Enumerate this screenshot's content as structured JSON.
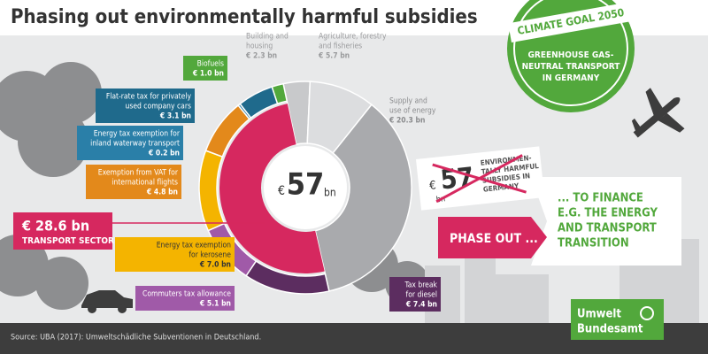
{
  "chart_data": {
    "type": "donut",
    "title": "Phasing out environmentally harmful subsidies",
    "currency": "€",
    "total": 57,
    "unit": "bn",
    "categories": [
      [
        "Building and",
        "housing"
      ],
      [
        "Agriculture, forestry",
        "and fisheries"
      ],
      [
        "Supply and",
        "use of energy"
      ],
      [
        "Tax break",
        "for diesel"
      ],
      [
        "Commuters tax allowance"
      ],
      [
        "Energy tax exemption",
        "for kerosene"
      ],
      [
        "Exemption from VAT for",
        "international flights"
      ],
      [
        "Energy tax exemption for",
        "inland waterway transport"
      ],
      [
        "Flat-rate tax for privately",
        "used company cars"
      ],
      [
        "Biofuels"
      ]
    ],
    "values": [
      2.3,
      5.7,
      20.3,
      7.4,
      5.1,
      7.0,
      4.8,
      0.2,
      3.1,
      1.0
    ],
    "value_labels": [
      "€ 2.3 bn",
      "€ 5.7 bn",
      "€ 20.3 bn",
      "€ 7.4 bn",
      "€ 5.1 bn",
      "€ 7.0 bn",
      "€ 4.8 bn",
      "€ 0.2 bn",
      "€ 3.1 bn",
      "€ 1.0 bn"
    ],
    "colors": [
      "#c8c9cb",
      "#dcdddf",
      "#a9aaad",
      "#5c2d60",
      "#a05aa8",
      "#f4b400",
      "#e3891b",
      "#2a7fa8",
      "#1f6a8c",
      "#52a83c"
    ],
    "subtotal": {
      "name": "TRANSPORT SECTOR",
      "value": 28.6,
      "label": "€ 28.6 bn",
      "color": "#d6285f"
    }
  },
  "badge": {
    "currency": "€",
    "value": 57,
    "unit": "bn",
    "text": [
      "ENVIRONMEN-",
      "TALLY HARMFUL",
      "SUBSIDIES IN",
      "GERMANY"
    ]
  },
  "phase_out": "PHASE OUT ...",
  "finance": [
    "... TO FINANCE",
    "E.G. THE ENERGY",
    "AND TRANSPORT",
    "TRANSITION"
  ],
  "stamp": {
    "title": "CLIMATE GOAL 2050",
    "text": [
      "GREENHOUSE GAS-",
      "NEUTRAL TRANSPORT",
      "IN GERMANY"
    ]
  },
  "source": "Source: UBA (2017): Umweltschädliche Subventionen in Deutschland.",
  "logo": [
    "Umwelt",
    "Bundesamt"
  ]
}
